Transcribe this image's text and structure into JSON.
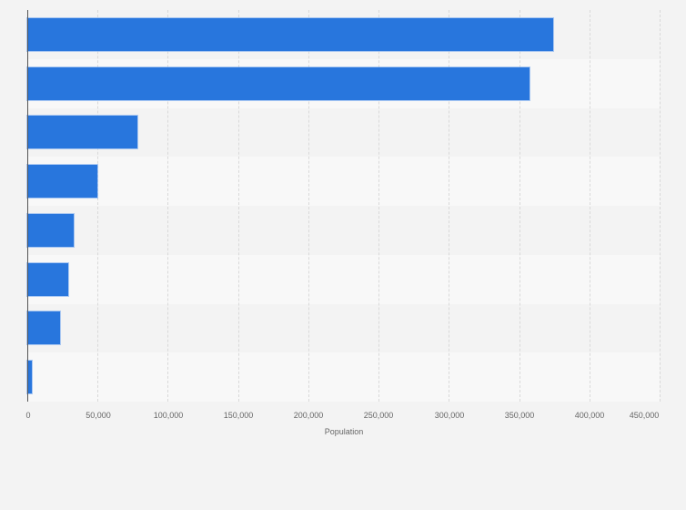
{
  "chart_data": {
    "type": "bar",
    "orientation": "horizontal",
    "title": "",
    "xlabel": "Population",
    "ylabel": "",
    "categories": [
      "",
      "",
      "",
      "",
      "",
      "",
      "",
      ""
    ],
    "values": [
      374500,
      357700,
      78300,
      49800,
      33000,
      29100,
      23300,
      3200
    ],
    "xlim": [
      0,
      450000
    ],
    "xticks": [
      0,
      50000,
      100000,
      150000,
      200000,
      250000,
      300000,
      350000,
      400000,
      450000
    ],
    "xtick_labels": [
      "0",
      "50,000",
      "100,000",
      "150,000",
      "200,000",
      "250,000",
      "300,000",
      "350,000",
      "400,000",
      "450,000"
    ],
    "grid": true,
    "legend": null,
    "bar_color": "#2876dd"
  },
  "axis": {
    "xlabel": "Population",
    "ticks": [
      "0",
      "50,000",
      "100,000",
      "150,000",
      "200,000",
      "250,000",
      "300,000",
      "350,000",
      "400,000",
      "450,000"
    ]
  }
}
